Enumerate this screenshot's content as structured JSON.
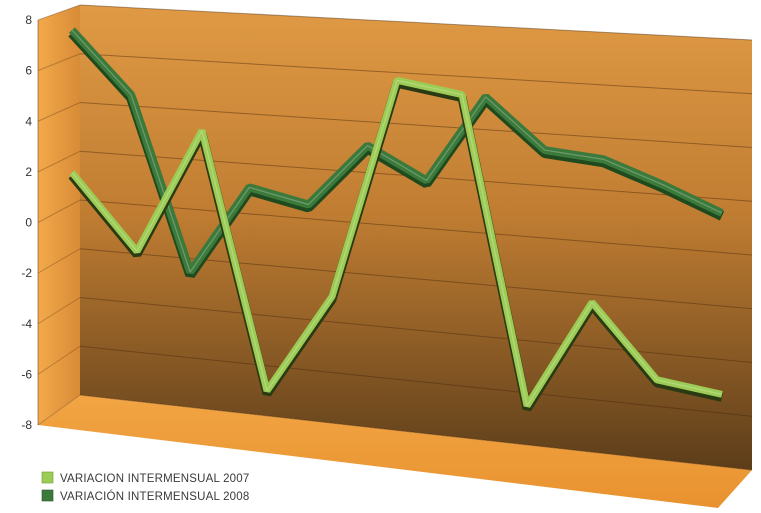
{
  "chart_data": {
    "type": "line",
    "title": "",
    "xlabel": "",
    "ylabel": "",
    "ylim": [
      -8,
      8
    ],
    "ytick_labels": [
      "8",
      "6",
      "4",
      "2",
      "0",
      "-2",
      "-4",
      "-6",
      "-8"
    ],
    "y_ticks": [
      8,
      6,
      4,
      2,
      0,
      -2,
      -4,
      -6,
      -8
    ],
    "grid": true,
    "legend_position": "bottom-left",
    "style": "3d-ribbon",
    "series": [
      {
        "name": "VARIACION INTERMENSUAL 2007",
        "color": "#9ccc55",
        "values": [
          1.1,
          -1.9,
          3.2,
          -7.0,
          -3.0,
          5.7,
          5.3,
          -6.5,
          -2.3,
          -5.0,
          -5.3
        ]
      },
      {
        "name": "VARIACIÓN INTERMENSUAL 2008",
        "color": "#3c7a3c",
        "values": [
          7.2,
          4.7,
          -2.3,
          1.3,
          0.8,
          3.3,
          2.1,
          5.5,
          3.6,
          3.4,
          2.6,
          1.7
        ]
      }
    ]
  },
  "colors": {
    "wall_top": "#e09a45",
    "wall_bottom": "#5c3d1a",
    "floor": "#f0a040",
    "series_2007": "#9ccc55",
    "series_2008": "#3c7a3c"
  }
}
